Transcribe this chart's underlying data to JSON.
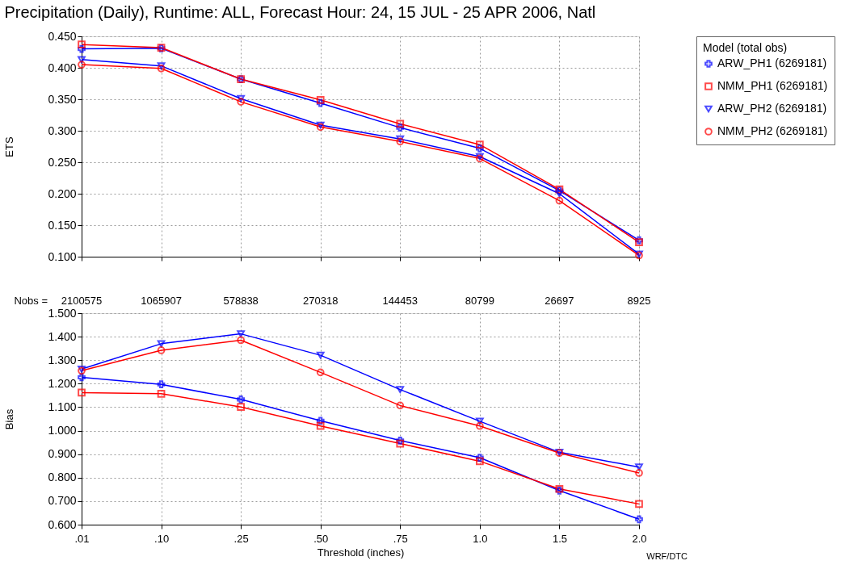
{
  "chart_data": [
    {
      "type": "line",
      "title": "Precipitation (Daily),  Runtime: ALL,  Forecast Hour: 24,  15 JUL - 25 APR 2006,  Natl",
      "ylabel": "ETS",
      "categories": [
        ".01",
        ".10",
        ".25",
        ".50",
        ".75",
        "1.0",
        "1.5",
        "2.0"
      ],
      "ylim": [
        0.1,
        0.45
      ],
      "yticks": [
        {
          "value": 0.1,
          "label": "0.100"
        },
        {
          "value": 0.15,
          "label": "0.150"
        },
        {
          "value": 0.2,
          "label": "0.200"
        },
        {
          "value": 0.25,
          "label": "0.250"
        },
        {
          "value": 0.3,
          "label": "0.300"
        },
        {
          "value": 0.35,
          "label": "0.350"
        },
        {
          "value": 0.4,
          "label": "0.400"
        },
        {
          "value": 0.45,
          "label": "0.450"
        }
      ],
      "tick_labels": "y",
      "grid": true,
      "legend": "right",
      "legend_title": "Model  (total obs)",
      "series": [
        {
          "name": "ARW_PH1 (6269181)",
          "color": "#0000ff",
          "marker": "cross",
          "values": [
            0.43,
            0.431,
            0.382,
            0.344,
            0.305,
            0.272,
            0.205,
            0.126
          ]
        },
        {
          "name": "NMM_PH1 (6269181)",
          "color": "#ff0000",
          "marker": "square",
          "values": [
            0.437,
            0.432,
            0.382,
            0.349,
            0.311,
            0.278,
            0.207,
            0.123
          ]
        },
        {
          "name": "ARW_PH2 (6269181)",
          "color": "#0000ff",
          "marker": "triangle",
          "values": [
            0.413,
            0.403,
            0.351,
            0.309,
            0.287,
            0.259,
            0.2,
            0.104
          ]
        },
        {
          "name": "NMM_PH2 (6269181)",
          "color": "#ff0000",
          "marker": "circle",
          "values": [
            0.405,
            0.399,
            0.346,
            0.306,
            0.283,
            0.256,
            0.189,
            0.102
          ]
        }
      ]
    },
    {
      "type": "line",
      "xlabel": "Threshold (inches)",
      "ylabel": "Bias",
      "categories": [
        ".01",
        ".10",
        ".25",
        ".50",
        ".75",
        "1.0",
        "1.5",
        "2.0"
      ],
      "ylim": [
        0.6,
        1.5
      ],
      "yticks": [
        {
          "value": 0.6,
          "label": "0.600"
        },
        {
          "value": 0.7,
          "label": "0.700"
        },
        {
          "value": 0.8,
          "label": "0.800"
        },
        {
          "value": 0.9,
          "label": "0.900"
        },
        {
          "value": 1.0,
          "label": "1.000"
        },
        {
          "value": 1.1,
          "label": "1.100"
        },
        {
          "value": 1.2,
          "label": "1.200"
        },
        {
          "value": 1.3,
          "label": "1.300"
        },
        {
          "value": 1.4,
          "label": "1.400"
        },
        {
          "value": 1.5,
          "label": "1.500"
        }
      ],
      "grid": true,
      "series": [
        {
          "name": "ARW_PH1 (6269181)",
          "color": "#0000ff",
          "marker": "cross",
          "values": [
            1.227,
            1.197,
            1.133,
            1.042,
            0.958,
            0.885,
            0.745,
            0.623
          ]
        },
        {
          "name": "NMM_PH1 (6269181)",
          "color": "#ff0000",
          "marker": "square",
          "values": [
            1.162,
            1.157,
            1.101,
            1.02,
            0.945,
            0.87,
            0.752,
            0.688
          ]
        },
        {
          "name": "ARW_PH2 (6269181)",
          "color": "#0000ff",
          "marker": "triangle",
          "values": [
            1.262,
            1.37,
            1.412,
            1.321,
            1.175,
            1.04,
            0.908,
            0.845
          ]
        },
        {
          "name": "NMM_PH2 (6269181)",
          "color": "#ff0000",
          "marker": "circle",
          "values": [
            1.255,
            1.342,
            1.385,
            1.248,
            1.107,
            1.02,
            0.905,
            0.82
          ]
        }
      ],
      "annotations": [
        "Nobs =",
        "2100575",
        "1065907",
        "578838",
        "270318",
        "144453",
        "80799",
        "26697",
        "8925",
        "WRF/DTC"
      ]
    }
  ]
}
